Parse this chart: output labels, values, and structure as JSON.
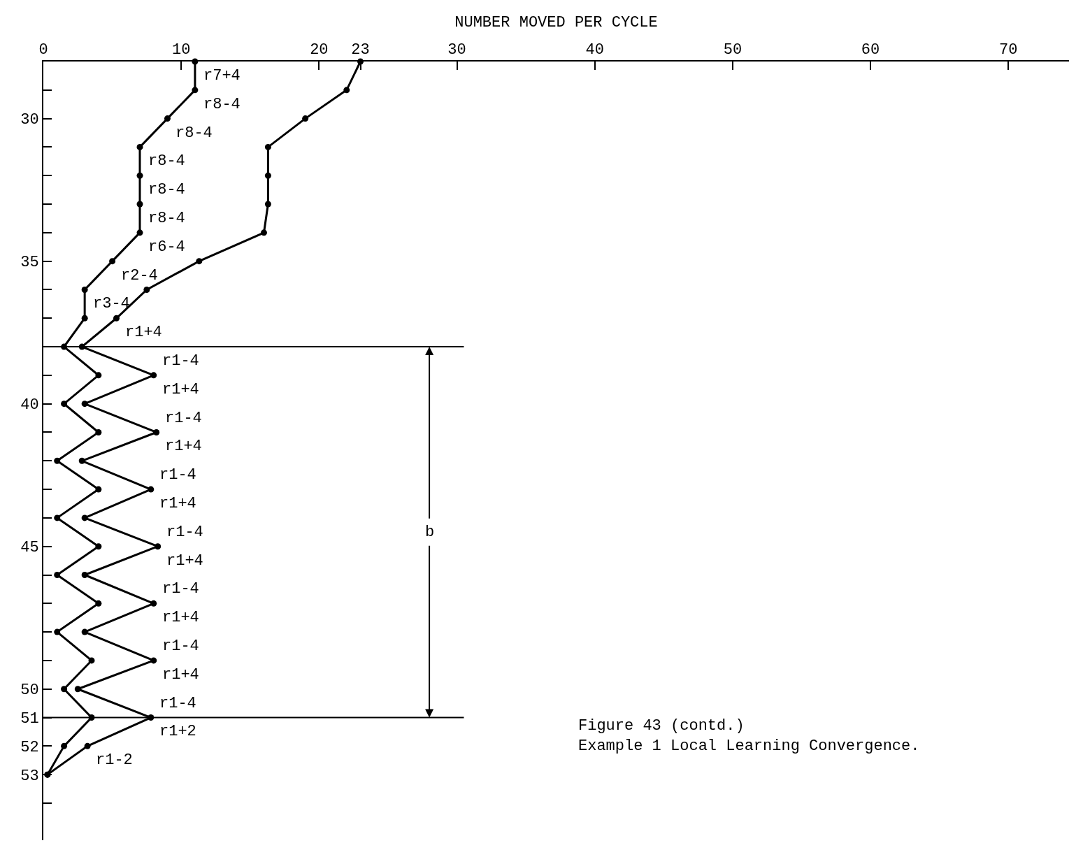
{
  "chart_data": {
    "type": "line",
    "xlabel": "NUMBER MOVED PER CYCLE",
    "series": [
      {
        "color": "#000000",
        "x": [
          11,
          11,
          9,
          7,
          7,
          7,
          7,
          5,
          3,
          3,
          1.5,
          4,
          1.5,
          4,
          1,
          4,
          1,
          4,
          1,
          4,
          1,
          3.5,
          1.5,
          3.5,
          1.5,
          0.3
        ],
        "values": [
          28,
          29,
          30,
          31,
          32,
          33,
          34,
          35,
          36,
          37,
          38,
          39,
          40,
          41,
          42,
          43,
          44,
          45,
          46,
          47,
          48,
          49,
          50,
          51,
          52,
          53
        ]
      },
      {
        "color": "#000000",
        "x": [
          23,
          22,
          19,
          16.3,
          16.3,
          16.3,
          16,
          11.3,
          7.5,
          5.3,
          2.8,
          8,
          3,
          8.2,
          2.8,
          7.8,
          3,
          8.3,
          3,
          8,
          3,
          8,
          2.5,
          7.8,
          3.2,
          0.3
        ],
        "values": [
          28,
          29,
          30,
          31,
          32,
          33,
          34,
          35,
          36,
          37,
          38,
          39,
          40,
          41,
          42,
          43,
          44,
          45,
          46,
          47,
          48,
          49,
          50,
          51,
          52,
          53
        ]
      }
    ],
    "xlim": [
      0,
      74.4
    ],
    "xticks": [
      0,
      10,
      20,
      23,
      30,
      40,
      50,
      60,
      70
    ],
    "ylim": [
      55.3,
      28
    ],
    "yticks": [
      {
        "value": 29,
        "label": null
      },
      30,
      {
        "value": 31,
        "label": null
      },
      {
        "value": 32,
        "label": null
      },
      {
        "value": 33,
        "label": null
      },
      {
        "value": 34,
        "label": null
      },
      35,
      {
        "value": 36,
        "label": null
      },
      {
        "value": 37,
        "label": null
      },
      {
        "value": 38,
        "label": null
      },
      {
        "value": 39,
        "label": null
      },
      40,
      {
        "value": 41,
        "label": null
      },
      {
        "value": 42,
        "label": null
      },
      {
        "value": 43,
        "label": null
      },
      {
        "value": 44,
        "label": null
      },
      45,
      {
        "value": 46,
        "label": null
      },
      {
        "value": 47,
        "label": null
      },
      {
        "value": 48,
        "label": null
      },
      {
        "value": 49,
        "label": null
      },
      50,
      51,
      52,
      53,
      {
        "value": 54,
        "label": null
      }
    ],
    "marker": "circle",
    "line_style": "solid",
    "ref_lines": [
      {
        "axis": "y",
        "value": 38,
        "color": "#000000"
      },
      {
        "axis": "y",
        "value": 51,
        "color": "#000000"
      }
    ],
    "annotations": [
      "r7+4",
      "r8-4",
      "r8-4",
      "r8-4",
      "r8-4",
      "r8-4",
      "r6-4",
      "r2-4",
      "r3-4",
      "r1+4",
      "r1-4",
      "r1+4",
      "r1-4",
      "r1+4",
      "r1-4",
      "r1+4",
      "r1-4",
      "r1+4",
      "r1-4",
      "r1+4",
      "r1-4",
      "r1+4",
      "r1-4",
      "r1+2",
      "r1-2",
      {
        "text": "b",
        "x": 28,
        "y": 44.5
      },
      "Figure 43 (contd.)\nExample 1 Local Learning Convergence."
    ]
  }
}
